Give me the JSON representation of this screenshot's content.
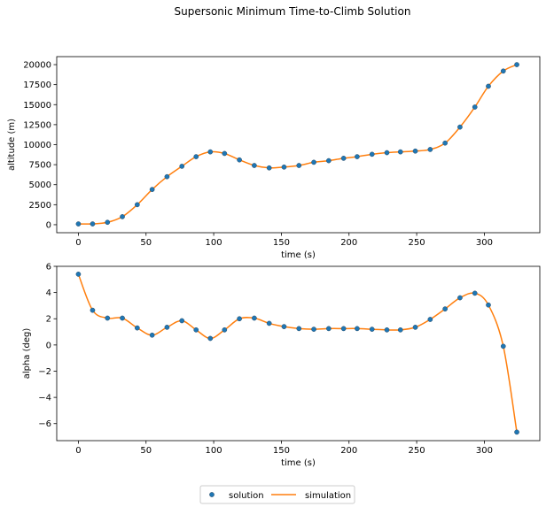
{
  "figure": {
    "title": "Supersonic Minimum Time-to-Climb Solution"
  },
  "legend": {
    "placement": "bottom-center",
    "items": [
      {
        "label": "solution",
        "kind": "marker",
        "color": "#1f77b4"
      },
      {
        "label": "simulation",
        "kind": "line",
        "color": "#ff7f0e"
      }
    ]
  },
  "chart_data": [
    {
      "type": "scatter+line",
      "xlabel": "time (s)",
      "ylabel": "altitude (m)",
      "xlim": [
        -16,
        341
      ],
      "ylim": [
        -1000,
        21000
      ],
      "xticks": [
        0,
        50,
        100,
        150,
        200,
        250,
        300
      ],
      "yticks": [
        0,
        2500,
        5000,
        7500,
        10000,
        12500,
        15000,
        17500,
        20000
      ],
      "grid": false,
      "series": [
        {
          "name": "solution",
          "style": "marker",
          "color": "#1f77b4",
          "x": [
            0,
            10.5,
            21.5,
            32.5,
            43.5,
            54.5,
            65.5,
            76.5,
            87,
            97.5,
            108,
            119,
            130,
            141,
            152,
            163,
            174,
            185,
            196,
            206,
            217,
            228,
            238,
            249,
            260,
            271,
            282,
            293,
            303,
            314,
            324
          ],
          "y": [
            100,
            100,
            300,
            1000,
            2500,
            4400,
            6000,
            7300,
            8500,
            9100,
            8900,
            8100,
            7400,
            7100,
            7200,
            7400,
            7800,
            8000,
            8300,
            8500,
            8800,
            9000,
            9100,
            9200,
            9400,
            10200,
            12200,
            14700,
            17300,
            19200,
            20000
          ]
        },
        {
          "name": "simulation",
          "style": "line",
          "color": "#ff7f0e",
          "x": [
            0,
            10.5,
            21.5,
            32.5,
            43.5,
            54.5,
            65.5,
            76.5,
            87,
            97.5,
            108,
            119,
            130,
            141,
            152,
            163,
            174,
            185,
            196,
            206,
            217,
            228,
            238,
            249,
            260,
            271,
            282,
            293,
            303,
            314,
            324
          ],
          "y": [
            100,
            100,
            300,
            1000,
            2500,
            4400,
            6000,
            7300,
            8500,
            9100,
            8900,
            8100,
            7400,
            7100,
            7200,
            7400,
            7800,
            8000,
            8300,
            8500,
            8800,
            9000,
            9100,
            9200,
            9400,
            10200,
            12200,
            14700,
            17300,
            19200,
            20000
          ]
        }
      ]
    },
    {
      "type": "scatter+line",
      "xlabel": "time (s)",
      "ylabel": "alpha (deg)",
      "xlim": [
        -16,
        341
      ],
      "ylim": [
        -7.3,
        6
      ],
      "xticks": [
        0,
        50,
        100,
        150,
        200,
        250,
        300
      ],
      "yticks": [
        -6,
        -4,
        -2,
        0,
        2,
        4,
        6
      ],
      "grid": false,
      "series": [
        {
          "name": "solution",
          "style": "marker",
          "color": "#1f77b4",
          "x": [
            0,
            10.5,
            21.5,
            32.5,
            43.5,
            54.5,
            65.5,
            76.5,
            87,
            97.5,
            108,
            119,
            130,
            141,
            152,
            163,
            174,
            185,
            196,
            206,
            217,
            228,
            238,
            249,
            260,
            271,
            282,
            293,
            303,
            314,
            324
          ],
          "y": [
            5.4,
            2.65,
            2.05,
            2.05,
            1.3,
            0.75,
            1.35,
            1.85,
            1.15,
            0.5,
            1.15,
            2.0,
            2.05,
            1.65,
            1.4,
            1.25,
            1.2,
            1.25,
            1.25,
            1.25,
            1.2,
            1.15,
            1.15,
            1.35,
            1.95,
            2.75,
            3.6,
            3.95,
            3.05,
            -0.1,
            -6.65
          ]
        },
        {
          "name": "simulation",
          "style": "line",
          "color": "#ff7f0e",
          "x": [
            0,
            10.5,
            21.5,
            32.5,
            43.5,
            54.5,
            65.5,
            76.5,
            87,
            97.5,
            108,
            119,
            130,
            141,
            152,
            163,
            174,
            185,
            196,
            206,
            217,
            228,
            238,
            249,
            260,
            271,
            282,
            293,
            303,
            314,
            324
          ],
          "y": [
            5.4,
            2.65,
            2.05,
            2.05,
            1.3,
            0.75,
            1.35,
            1.85,
            1.15,
            0.5,
            1.15,
            2.0,
            2.05,
            1.65,
            1.4,
            1.25,
            1.2,
            1.25,
            1.25,
            1.25,
            1.2,
            1.15,
            1.15,
            1.35,
            1.95,
            2.75,
            3.6,
            3.95,
            3.05,
            -0.1,
            -6.65
          ]
        }
      ]
    }
  ]
}
